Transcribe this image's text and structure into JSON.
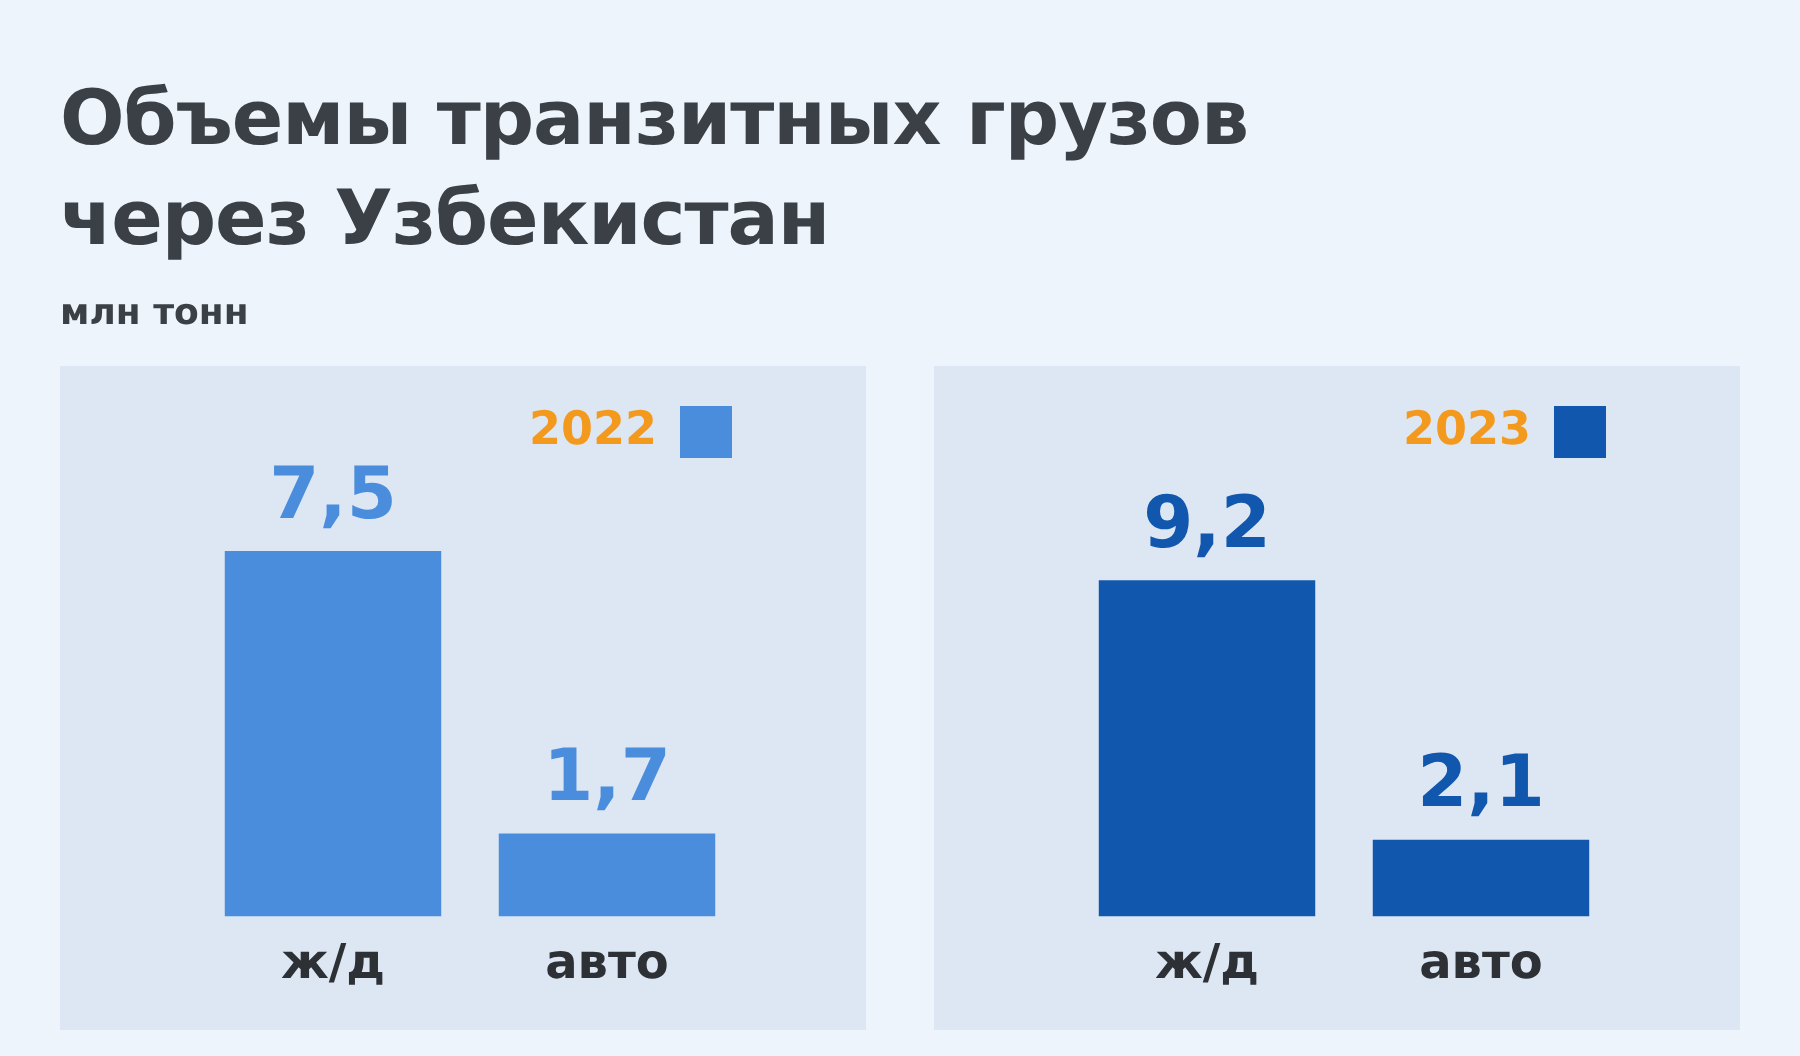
{
  "chart_data": [
    {
      "type": "bar",
      "title": "Объемы транзитных грузов через Узбекистан",
      "subtitle": "млн тонн",
      "categories": [
        "ж/д",
        "авто"
      ],
      "series": [
        {
          "name": "2022",
          "color": "#4a8ddc",
          "values": [
            7.5,
            1.7
          ],
          "value_labels": [
            "7,5",
            "1,7"
          ]
        }
      ],
      "tick_labels": "x",
      "grid": false,
      "legend": "top right"
    },
    {
      "type": "bar",
      "categories": [
        "ж/д",
        "авто"
      ],
      "series": [
        {
          "name": "2023",
          "color": "#1257ae",
          "values": [
            9.2,
            2.1
          ],
          "value_labels": [
            "9,2",
            "2,1"
          ]
        }
      ],
      "tick_labels": "x",
      "grid": false,
      "legend": "top right"
    }
  ]
}
